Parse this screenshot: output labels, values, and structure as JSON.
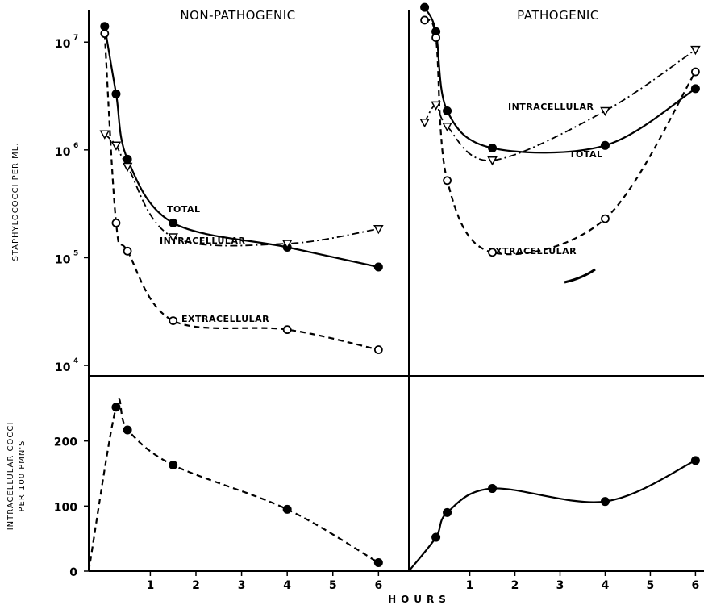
{
  "chart_data": [
    {
      "type": "line",
      "panel": "upper-left",
      "title": "NON-PATHOGENIC",
      "ylabel": "STAPHYLOCOCCI PER ML.",
      "yscale": "log",
      "ylim": [
        8000,
        20000000
      ],
      "xlim": [
        -0.35,
        6.1
      ],
      "ytick_bases": [
        "10",
        "10",
        "10",
        "10"
      ],
      "ytick_exponents": [
        "7",
        "6",
        "5",
        "4"
      ],
      "ytick_values": [
        10000000,
        1000000,
        100000,
        10000
      ],
      "series": [
        {
          "name": "TOTAL",
          "style": "solid",
          "marker": "filled-circle",
          "x": [
            0,
            0.25,
            0.5,
            1.5,
            4,
            6
          ],
          "y": [
            14000000,
            3300000,
            820000,
            210000,
            125000,
            82000
          ]
        },
        {
          "name": "INTRACELLULAR",
          "style": "dashdot",
          "marker": "triangle-down",
          "x": [
            0,
            0.25,
            0.5,
            1.5,
            4,
            6
          ],
          "y": [
            1400000,
            1100000,
            700000,
            155000,
            135000,
            185000
          ]
        },
        {
          "name": "EXTRACELLULAR",
          "style": "dashed",
          "marker": "open-circle",
          "x": [
            0,
            0.25,
            0.5,
            1.5,
            4,
            6
          ],
          "y": [
            12000000,
            210000,
            115000,
            26000,
            21500,
            14000
          ]
        }
      ]
    },
    {
      "type": "line",
      "panel": "upper-right",
      "title": "PATHOGENIC",
      "yscale": "log",
      "ylim": [
        8000,
        20000000
      ],
      "xlim": [
        -0.35,
        6.1
      ],
      "series": [
        {
          "name": "TOTAL",
          "style": "solid",
          "marker": "filled-circle",
          "x": [
            0,
            0.25,
            0.5,
            1.5,
            4,
            6
          ],
          "y": [
            21000000,
            12500000,
            2300000,
            1040000,
            1100000,
            3700000
          ]
        },
        {
          "name": "INTRACELLULAR",
          "style": "dashdot",
          "marker": "triangle-down",
          "x": [
            0,
            0.25,
            0.5,
            1.5,
            4,
            6
          ],
          "y": [
            1800000,
            2600000,
            1650000,
            800000,
            2300000,
            8500000
          ]
        },
        {
          "name": "EXTRACELLULAR",
          "style": "dashed",
          "marker": "open-circle",
          "x": [
            0,
            0.25,
            0.5,
            1.5,
            4,
            6
          ],
          "y": [
            16000000,
            11000000,
            520000,
            112000,
            230000,
            5300000
          ]
        }
      ]
    },
    {
      "type": "line",
      "panel": "lower-left",
      "ylabel": [
        "INTRACELLULAR COCCI",
        "PER 100 PMN'S"
      ],
      "ylim": [
        0,
        300
      ],
      "yticks": [
        0,
        100,
        200
      ],
      "ytick_labels": [
        "0",
        "100",
        "200"
      ],
      "xlim": [
        -0.35,
        6.1
      ],
      "xticks": [
        1,
        2,
        3,
        4,
        5,
        6
      ],
      "xtick_labels": [
        "1",
        "2",
        "3",
        "4",
        "5",
        "6"
      ],
      "series": [
        {
          "style": "dashed",
          "marker": "filled-circle",
          "x": [
            -0.35,
            0.25,
            0.5,
            1.5,
            4,
            6
          ],
          "y": [
            0,
            252,
            217,
            163,
            95,
            13
          ]
        }
      ]
    },
    {
      "type": "line",
      "panel": "lower-right",
      "ylim": [
        0,
        300
      ],
      "xlim": [
        -0.35,
        6.1
      ],
      "xticks": [
        1,
        2,
        3,
        4,
        5,
        6
      ],
      "xtick_labels": [
        "1",
        "2",
        "3",
        "4",
        "5",
        "6"
      ],
      "xlabel": "HOURS",
      "series": [
        {
          "style": "solid",
          "marker": "filled-circle",
          "x": [
            -0.35,
            0.25,
            0.5,
            1.5,
            4,
            6
          ],
          "y": [
            0,
            52,
            90,
            127,
            107,
            170
          ]
        }
      ]
    }
  ]
}
